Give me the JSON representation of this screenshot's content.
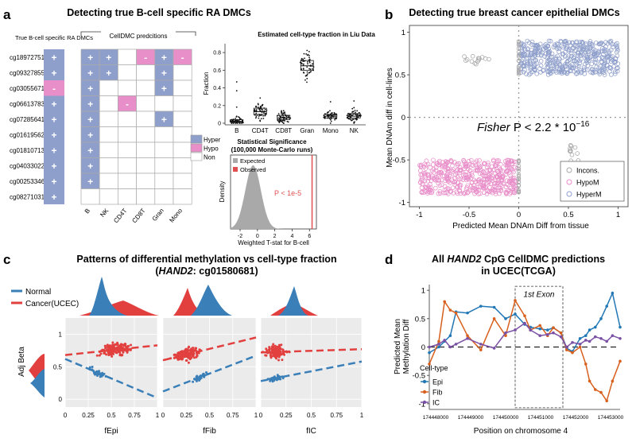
{
  "colors": {
    "hyper": "#8f9fcb",
    "hypo": "#e88ec9",
    "non": "#ffffff",
    "normal": "#3a7fb8",
    "cancer": "#e2403f",
    "epi": "#2178b5",
    "fib": "#d8601e",
    "ic": "#7a50a5",
    "incons": "#a8a8a8",
    "observed": "#e05050",
    "grid": "#cccccc"
  },
  "panel_letters": {
    "a": "a",
    "b": "b",
    "c": "c",
    "d": "d"
  },
  "chart_data": [
    {
      "id": "a_heatmap",
      "type": "heatmap",
      "title": "Detecting true B-cell specific RA DMCs",
      "truth_header": "True B-cell specific RA DMCs",
      "pred_header": "CellDMC predcitions",
      "rows": [
        "cg18972751",
        "cg09327855",
        "cg03055671",
        "cg06613783",
        "cg07285641",
        "cg01619562",
        "cg01810713",
        "cg04033022",
        "cg00253346",
        "cg08271031"
      ],
      "columns": [
        "B",
        "NK",
        "CD4T",
        "CD8T",
        "Gran",
        "Mono"
      ],
      "truth": [
        "+",
        "+",
        "-",
        "+",
        "+",
        "+",
        "+",
        "+",
        "+",
        "+"
      ],
      "predictions": [
        [
          "+",
          "+",
          "",
          "-",
          "+",
          "-"
        ],
        [
          "+",
          "+",
          "",
          "",
          "+",
          ""
        ],
        [
          "+",
          "",
          "",
          "",
          "+",
          ""
        ],
        [
          "+",
          "",
          "-",
          "",
          "",
          ""
        ],
        [
          "+",
          "",
          "",
          "",
          "+",
          ""
        ],
        [
          "+",
          "",
          "",
          "",
          "",
          ""
        ],
        [
          "+",
          "",
          "",
          "",
          "",
          ""
        ],
        [
          "+",
          "",
          "",
          "",
          "",
          ""
        ],
        [
          "+",
          "",
          "",
          "",
          "",
          ""
        ],
        [
          "",
          "",
          "",
          "",
          "",
          ""
        ]
      ],
      "legend": [
        "Hyper",
        "Hypo",
        "Non"
      ]
    },
    {
      "id": "a_boxplot",
      "type": "box",
      "title": "Estimated cell-type fraction in Liu Data",
      "categories": [
        "B",
        "CD4T",
        "CD8T",
        "Gran",
        "Mono",
        "NK"
      ],
      "medians": [
        0.02,
        0.13,
        0.06,
        0.65,
        0.08,
        0.08
      ],
      "q1": [
        0.01,
        0.1,
        0.04,
        0.6,
        0.06,
        0.06
      ],
      "q3": [
        0.04,
        0.17,
        0.09,
        0.71,
        0.1,
        0.11
      ],
      "ylabel": "Fraction",
      "yticks": [
        0.0,
        0.2,
        0.4,
        0.6,
        0.8
      ],
      "ylim": [
        0,
        0.9
      ]
    },
    {
      "id": "a_density",
      "type": "area",
      "title": "Statistical Significance",
      "subtitle": "(100,000 Monte-Carlo runs)",
      "legend": [
        "Expected",
        "Observed"
      ],
      "annotation": "P < 1e-5",
      "xlabel": "Weighted T-stat for B-cell",
      "ylabel": "Density",
      "xticks": [
        -2,
        0,
        2,
        4,
        6
      ],
      "xlim": [
        -3.1,
        6.8
      ],
      "expected_mean": -0.5,
      "expected_sd": 0.9,
      "observed": 6.3
    },
    {
      "id": "b_scatter",
      "type": "scatter",
      "title": "Detecting true breast cancer epithelial DMCs",
      "xlabel": "Predicted Mean DNAm Diff from tissue",
      "ylabel": "Mean DNAm diff in cell-lines",
      "xticks": [
        -1.0,
        -0.5,
        0.0,
        0.5,
        1.0
      ],
      "yticks": [
        -1.0,
        -0.5,
        0.0,
        0.5,
        1.0
      ],
      "xlim": [
        -1.1,
        1.1
      ],
      "ylim": [
        -1.05,
        1.08
      ],
      "annotation_italic": "Fisher",
      "annotation_expr": "P < 2.2 * 10",
      "annotation_exp": "−16",
      "legend": [
        "Incons.",
        "HypoM",
        "HyperM"
      ],
      "clusters": [
        {
          "name": "HyperM",
          "x_range": [
            0.01,
            1.0
          ],
          "y_range": [
            0.5,
            0.9
          ]
        },
        {
          "name": "HypoM",
          "x_range": [
            -1.0,
            -0.01
          ],
          "y_range": [
            -0.9,
            -0.5
          ]
        },
        {
          "name": "Incons.",
          "x_range": [
            -0.55,
            -0.3
          ],
          "y_range": [
            0.62,
            0.72
          ]
        },
        {
          "name": "Incons.",
          "x_range": [
            0.5,
            0.6
          ],
          "y_range": [
            -0.6,
            -0.3
          ]
        }
      ]
    },
    {
      "id": "c_scatter",
      "type": "scatter",
      "title_line1": "Patterns of differential methylation vs cell-type fraction",
      "title_prefix": "(",
      "title_gene": "HAND2",
      "title_suffix": ": cg01580681)",
      "legend": [
        "Normal",
        "Cancer(UCEC)"
      ],
      "ylabel": "Adj Beta",
      "yticks": [
        0.0,
        0.5,
        1.0
      ],
      "ylim": [
        -0.12,
        1.25
      ],
      "xticks": [
        0,
        0.25,
        0.5,
        0.75,
        1
      ],
      "xtick_labels": [
        "0",
        "0.25",
        "0.5",
        "0.75",
        "1"
      ],
      "xlim": [
        0,
        1
      ],
      "panels": [
        {
          "xlabel": "fEpi",
          "normal_fit": [
            0.62,
            -0.6
          ],
          "cancer_fit": [
            0.68,
            0.15
          ]
        },
        {
          "xlabel": "fFib",
          "normal_fit": [
            0.12,
            0.55
          ],
          "cancer_fit": [
            0.6,
            0.35
          ]
        },
        {
          "xlabel": "fIC",
          "normal_fit": [
            0.28,
            0.3
          ],
          "cancer_fit": [
            0.72,
            0.05
          ]
        }
      ]
    },
    {
      "id": "d_line",
      "type": "line",
      "title_prefix": "All ",
      "title_gene": "HAND2",
      "title_suffix": " CpG CellDMC predictions",
      "title_line2": "in UCEC(TCGA)",
      "annotation": "1st Exon",
      "xlabel": "Position on chromosome 4",
      "ylabel_line1": "Predicted Mean",
      "ylabel_line2": "Methylation Diff",
      "xtick_labels": [
        "174448000",
        "174449000",
        "174450000",
        "174451000",
        "174452000",
        "174453000"
      ],
      "xlim": [
        0,
        1
      ],
      "ylim": [
        -1.1,
        1.1
      ],
      "yticks": [
        -1.0,
        -0.5,
        0.0,
        0.5,
        1.0
      ],
      "legend_title": "Cell-type",
      "x": [
        0.0,
        0.05,
        0.08,
        0.11,
        0.14,
        0.2,
        0.27,
        0.34,
        0.4,
        0.45,
        0.5,
        0.53,
        0.58,
        0.62,
        0.65,
        0.69,
        0.72,
        0.75,
        0.79,
        0.82,
        0.84,
        0.87,
        0.9,
        0.93,
        0.96,
        1.0
      ],
      "series": [
        {
          "name": "Epi",
          "values": [
            -0.1,
            0.0,
            0.1,
            0.2,
            0.62,
            0.6,
            0.72,
            0.7,
            0.5,
            0.58,
            0.4,
            0.35,
            0.32,
            0.3,
            0.34,
            0.25,
            -0.02,
            -0.08,
            0.15,
            0.2,
            0.3,
            0.35,
            0.5,
            0.72,
            0.95,
            0.35
          ]
        },
        {
          "name": "Fib",
          "values": [
            -0.3,
            0.1,
            0.8,
            0.65,
            0.6,
            0.2,
            -0.05,
            0.5,
            0.2,
            0.82,
            0.55,
            0.3,
            0.38,
            0.2,
            0.34,
            0.25,
            -0.05,
            -0.1,
            0.0,
            -0.3,
            -0.6,
            -0.75,
            -0.8,
            -0.95,
            -0.6,
            -0.25
          ]
        },
        {
          "name": "IC",
          "values": [
            0.0,
            0.05,
            0.12,
            0.0,
            0.05,
            0.15,
            0.05,
            -0.02,
            0.25,
            0.3,
            0.42,
            0.3,
            0.2,
            0.22,
            0.25,
            0.18,
            0.0,
            0.08,
            0.05,
            0.12,
            0.1,
            0.18,
            0.15,
            0.1,
            0.2,
            0.15
          ]
        }
      ]
    }
  ]
}
